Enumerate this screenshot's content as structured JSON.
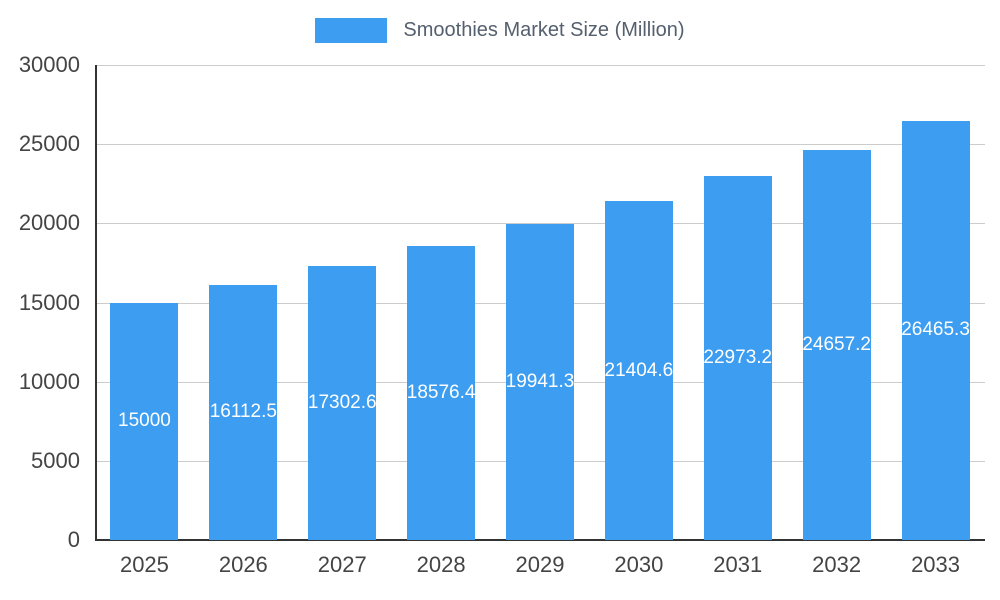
{
  "chart_data": {
    "type": "bar",
    "title": "Smoothies Market Size (Million)",
    "categories": [
      "2025",
      "2026",
      "2027",
      "2028",
      "2029",
      "2030",
      "2031",
      "2032",
      "2033"
    ],
    "values": [
      15000,
      16112.5,
      17302.6,
      18576.4,
      19941.3,
      21404.6,
      22973.2,
      24657.2,
      26465.3
    ],
    "labels": [
      "15000",
      "16112.5",
      "17302.6",
      "18576.4",
      "19941.3",
      "21404.6",
      "22973.2",
      "24657.2",
      "26465.3"
    ],
    "xlabel": "",
    "ylabel": "",
    "ylim": [
      0,
      30000
    ],
    "yticks": [
      0,
      5000,
      10000,
      15000,
      20000,
      25000,
      30000
    ],
    "grid": true,
    "legend_position": "top",
    "colors": {
      "bar": "#3d9df0",
      "grid": "#cccccc",
      "axis": "#333333",
      "tick_label": "#444444",
      "title": "#55606e",
      "value_label": "#ffffff"
    }
  }
}
